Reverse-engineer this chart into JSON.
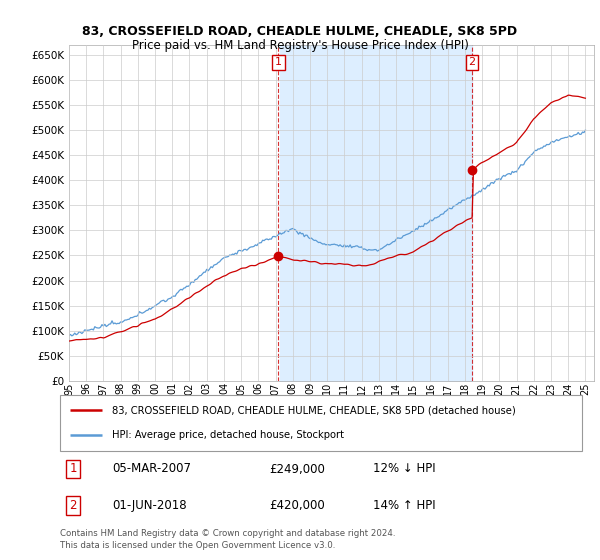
{
  "title1": "83, CROSSEFIELD ROAD, CHEADLE HULME, CHEADLE, SK8 5PD",
  "title2": "Price paid vs. HM Land Registry's House Price Index (HPI)",
  "legend_line1": "83, CROSSEFIELD ROAD, CHEADLE HULME, CHEADLE, SK8 5PD (detached house)",
  "legend_line2": "HPI: Average price, detached house, Stockport",
  "annotation1_date": "05-MAR-2007",
  "annotation1_price": "£249,000",
  "annotation1_hpi": "12% ↓ HPI",
  "annotation2_date": "01-JUN-2018",
  "annotation2_price": "£420,000",
  "annotation2_hpi": "14% ↑ HPI",
  "footnote": "Contains HM Land Registry data © Crown copyright and database right 2024.\nThis data is licensed under the Open Government Licence v3.0.",
  "sale1_year": 2007.17,
  "sale1_price": 249000,
  "sale2_year": 2018.42,
  "sale2_price": 420000,
  "hpi_color": "#5b9bd5",
  "price_color": "#cc0000",
  "fill_color": "#ddeeff",
  "ylim_min": 0,
  "ylim_max": 670000,
  "xlim_min": 1995,
  "xlim_max": 2025.5,
  "background_color": "#ffffff",
  "grid_color": "#cccccc"
}
